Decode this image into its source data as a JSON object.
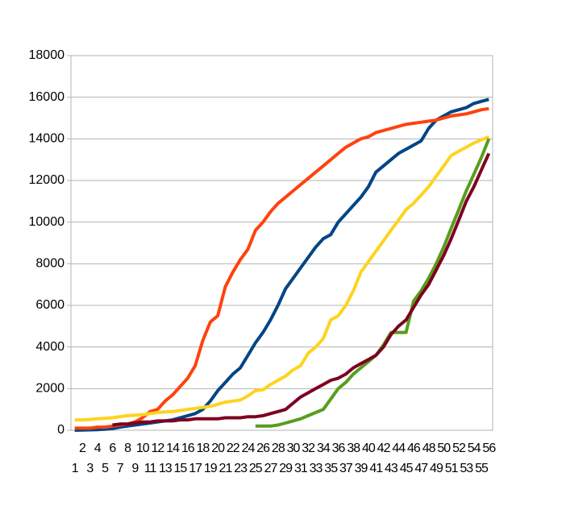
{
  "chart_data": {
    "type": "line",
    "categories": [
      1,
      2,
      3,
      4,
      5,
      6,
      7,
      8,
      9,
      10,
      11,
      12,
      13,
      14,
      15,
      16,
      17,
      18,
      19,
      20,
      21,
      22,
      23,
      24,
      25,
      26,
      27,
      28,
      29,
      30,
      31,
      32,
      33,
      34,
      35,
      36,
      37,
      38,
      39,
      40,
      41,
      42,
      43,
      44,
      45,
      46,
      47,
      48,
      49,
      50,
      51,
      52,
      53,
      54,
      55,
      56
    ],
    "ylim": [
      0,
      18000
    ],
    "yticks": [
      0,
      2000,
      4000,
      6000,
      8000,
      10000,
      12000,
      14000,
      16000,
      18000
    ],
    "grid": true,
    "series": [
      {
        "color": "#004586",
        "values": [
          0,
          10,
          20,
          30,
          50,
          80,
          150,
          200,
          250,
          300,
          350,
          400,
          450,
          500,
          600,
          700,
          800,
          1000,
          1400,
          1900,
          2300,
          2700,
          3000,
          3600,
          4200,
          4700,
          5300,
          6000,
          6800,
          7300,
          7800,
          8300,
          8800,
          9200,
          9400,
          10000,
          10400,
          10800,
          11200,
          11700,
          12400,
          12700,
          13000,
          13300,
          13500,
          13700,
          13900,
          14500,
          14900,
          15100,
          15300,
          15400,
          15500,
          15700,
          15800,
          15900
        ]
      },
      {
        "color": "#ff420e",
        "values": [
          100,
          100,
          100,
          150,
          150,
          200,
          250,
          300,
          400,
          600,
          900,
          1000,
          1400,
          1700,
          2100,
          2500,
          3100,
          4300,
          5200,
          5500,
          6900,
          7600,
          8200,
          8700,
          9600,
          10000,
          10500,
          10900,
          11200,
          11500,
          11800,
          12100,
          12400,
          12700,
          13000,
          13300,
          13600,
          13800,
          14000,
          14100,
          14300,
          14400,
          14500,
          14600,
          14700,
          14750,
          14800,
          14850,
          14900,
          15000,
          15100,
          15150,
          15200,
          15300,
          15400,
          15450
        ]
      },
      {
        "color": "#ffd320",
        "values": [
          500,
          500,
          520,
          550,
          570,
          600,
          650,
          700,
          720,
          750,
          800,
          850,
          880,
          900,
          950,
          1000,
          1050,
          1100,
          1150,
          1250,
          1350,
          1400,
          1450,
          1650,
          1900,
          1950,
          2200,
          2400,
          2600,
          2900,
          3100,
          3700,
          4000,
          4400,
          5300,
          5500,
          6000,
          6700,
          7600,
          8100,
          8600,
          9100,
          9600,
          10100,
          10600,
          10900,
          11300,
          11700,
          12200,
          12700,
          13200,
          13400,
          13600,
          13800,
          13950,
          14100
        ]
      },
      {
        "color": "#579d1c",
        "values": [
          null,
          null,
          null,
          null,
          null,
          null,
          null,
          null,
          null,
          null,
          null,
          null,
          null,
          null,
          null,
          null,
          null,
          null,
          null,
          null,
          null,
          null,
          null,
          null,
          200,
          200,
          200,
          250,
          350,
          450,
          550,
          700,
          850,
          1000,
          1500,
          2000,
          2300,
          2700,
          3000,
          3300,
          3600,
          4100,
          4700,
          4700,
          4700,
          6200,
          6700,
          7300,
          8000,
          8800,
          9700,
          10600,
          11500,
          12300,
          13100,
          14000
        ]
      },
      {
        "color": "#7e0021",
        "values": [
          null,
          null,
          null,
          null,
          null,
          250,
          300,
          300,
          350,
          400,
          400,
          450,
          450,
          450,
          500,
          500,
          550,
          550,
          550,
          550,
          600,
          600,
          600,
          650,
          650,
          700,
          800,
          900,
          1000,
          1300,
          1600,
          1800,
          2000,
          2200,
          2400,
          2500,
          2700,
          3000,
          3200,
          3400,
          3600,
          4000,
          4600,
          5000,
          5300,
          5900,
          6500,
          7000,
          7700,
          8400,
          9200,
          10100,
          11000,
          11700,
          12500,
          13300
        ]
      }
    ]
  }
}
